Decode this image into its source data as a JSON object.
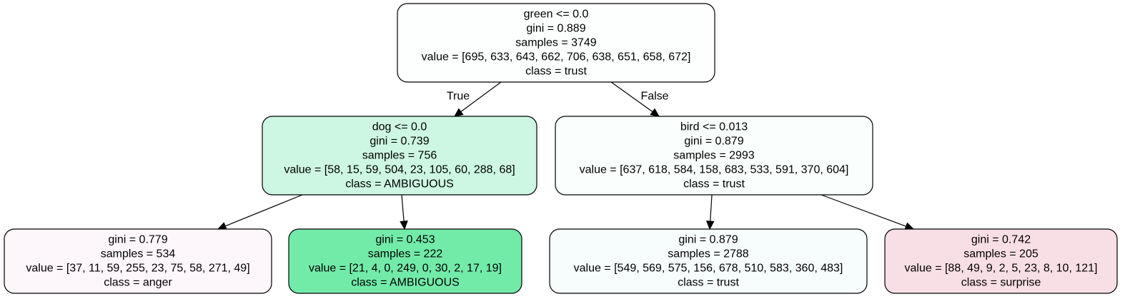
{
  "nodes": [
    {
      "id": "root",
      "lines": [
        "green <= 0.0",
        "gini = 0.889",
        "samples = 3749",
        "value = [695, 633, 643, 662, 706, 638, 651, 658, 672]",
        "class = trust"
      ],
      "fill": "#fdfefe"
    },
    {
      "id": "n1",
      "lines": [
        "dog <= 0.0",
        "gini = 0.739",
        "samples = 756",
        "value = [58, 15, 59, 504, 23, 105, 60, 288, 68]",
        "class = AMBIGUOUS"
      ],
      "fill": "#cdf7e2"
    },
    {
      "id": "n2",
      "lines": [
        "bird <= 0.013",
        "gini = 0.879",
        "samples = 2993",
        "value = [637, 618, 584, 158, 683, 533, 591, 370, 604]",
        "class = trust"
      ],
      "fill": "#fafefd"
    },
    {
      "id": "n3",
      "lines": [
        "gini = 0.779",
        "samples = 534",
        "value = [37, 11, 59, 255, 23, 75, 58, 271, 49]",
        "class = anger"
      ],
      "fill": "#fdf6fb"
    },
    {
      "id": "n4",
      "lines": [
        "gini = 0.453",
        "samples = 222",
        "value = [21, 4, 0, 249, 0, 30, 2, 17, 19]",
        "class = AMBIGUOUS"
      ],
      "fill": "#72eba9"
    },
    {
      "id": "n5",
      "lines": [
        "gini = 0.879",
        "samples = 2788",
        "value = [549, 569, 575, 156, 678, 510, 583, 360, 483]",
        "class = trust"
      ],
      "fill": "#f7fcfd"
    },
    {
      "id": "n6",
      "lines": [
        "gini = 0.742",
        "samples = 205",
        "value = [88, 49, 9, 2, 5, 23, 8, 10, 121]",
        "class = surprise"
      ],
      "fill": "#f8dfe5"
    }
  ],
  "edges": [
    {
      "from": "root",
      "to": "n1",
      "label": "True"
    },
    {
      "from": "root",
      "to": "n2",
      "label": "False"
    },
    {
      "from": "n1",
      "to": "n3",
      "label": ""
    },
    {
      "from": "n1",
      "to": "n4",
      "label": ""
    },
    {
      "from": "n2",
      "to": "n5",
      "label": ""
    },
    {
      "from": "n2",
      "to": "n6",
      "label": ""
    }
  ]
}
